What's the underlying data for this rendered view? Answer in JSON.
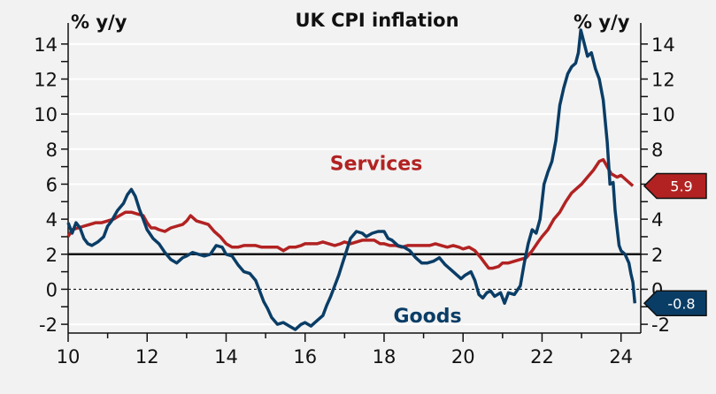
{
  "chart_data": {
    "type": "line",
    "title": "UK CPI inflation",
    "ylabel_left": "% y/y",
    "ylabel_right": "% y/y",
    "ylim": [
      -2.5,
      15
    ],
    "xlim": [
      10,
      24.5
    ],
    "y_ticks": [
      "-2",
      "0",
      "2",
      "4",
      "6",
      "8",
      "10",
      "12",
      "14"
    ],
    "x_ticks": [
      "10",
      "12",
      "14",
      "16",
      "18",
      "20",
      "22",
      "24"
    ],
    "grid": true,
    "reference_lines": [
      {
        "y": 2,
        "style": "solid"
      },
      {
        "y": 0,
        "style": "dotted"
      }
    ],
    "series": [
      {
        "name": "Services",
        "color": "#b22222",
        "end_value": "5.9",
        "points": [
          [
            10.0,
            3.0
          ],
          [
            10.1,
            3.4
          ],
          [
            10.25,
            3.5
          ],
          [
            10.4,
            3.6
          ],
          [
            10.55,
            3.7
          ],
          [
            10.7,
            3.8
          ],
          [
            10.85,
            3.8
          ],
          [
            11.0,
            3.9
          ],
          [
            11.15,
            4.0
          ],
          [
            11.3,
            4.2
          ],
          [
            11.45,
            4.4
          ],
          [
            11.6,
            4.4
          ],
          [
            11.75,
            4.3
          ],
          [
            11.9,
            4.2
          ],
          [
            12.0,
            3.8
          ],
          [
            12.1,
            3.5
          ],
          [
            12.2,
            3.5
          ],
          [
            12.3,
            3.4
          ],
          [
            12.45,
            3.3
          ],
          [
            12.6,
            3.5
          ],
          [
            12.75,
            3.6
          ],
          [
            12.9,
            3.7
          ],
          [
            13.0,
            3.9
          ],
          [
            13.1,
            4.2
          ],
          [
            13.25,
            3.9
          ],
          [
            13.4,
            3.8
          ],
          [
            13.55,
            3.7
          ],
          [
            13.7,
            3.3
          ],
          [
            13.85,
            3.0
          ],
          [
            14.0,
            2.6
          ],
          [
            14.15,
            2.4
          ],
          [
            14.3,
            2.4
          ],
          [
            14.45,
            2.5
          ],
          [
            14.6,
            2.5
          ],
          [
            14.75,
            2.5
          ],
          [
            14.9,
            2.4
          ],
          [
            15.0,
            2.4
          ],
          [
            15.15,
            2.4
          ],
          [
            15.3,
            2.4
          ],
          [
            15.45,
            2.2
          ],
          [
            15.6,
            2.4
          ],
          [
            15.75,
            2.4
          ],
          [
            15.9,
            2.5
          ],
          [
            16.0,
            2.6
          ],
          [
            16.15,
            2.6
          ],
          [
            16.3,
            2.6
          ],
          [
            16.45,
            2.7
          ],
          [
            16.6,
            2.6
          ],
          [
            16.75,
            2.5
          ],
          [
            16.9,
            2.6
          ],
          [
            17.0,
            2.7
          ],
          [
            17.15,
            2.6
          ],
          [
            17.3,
            2.7
          ],
          [
            17.45,
            2.8
          ],
          [
            17.6,
            2.8
          ],
          [
            17.75,
            2.8
          ],
          [
            17.9,
            2.6
          ],
          [
            18.0,
            2.6
          ],
          [
            18.15,
            2.5
          ],
          [
            18.3,
            2.5
          ],
          [
            18.45,
            2.4
          ],
          [
            18.6,
            2.5
          ],
          [
            18.75,
            2.5
          ],
          [
            18.9,
            2.5
          ],
          [
            19.0,
            2.5
          ],
          [
            19.15,
            2.5
          ],
          [
            19.3,
            2.6
          ],
          [
            19.45,
            2.5
          ],
          [
            19.6,
            2.4
          ],
          [
            19.75,
            2.5
          ],
          [
            19.9,
            2.4
          ],
          [
            20.0,
            2.3
          ],
          [
            20.15,
            2.4
          ],
          [
            20.3,
            2.2
          ],
          [
            20.45,
            1.8
          ],
          [
            20.55,
            1.5
          ],
          [
            20.65,
            1.2
          ],
          [
            20.75,
            1.2
          ],
          [
            20.9,
            1.3
          ],
          [
            21.0,
            1.5
          ],
          [
            21.15,
            1.5
          ],
          [
            21.3,
            1.6
          ],
          [
            21.45,
            1.7
          ],
          [
            21.6,
            1.8
          ],
          [
            21.75,
            2.2
          ],
          [
            21.9,
            2.7
          ],
          [
            22.0,
            3.0
          ],
          [
            22.15,
            3.4
          ],
          [
            22.3,
            4.0
          ],
          [
            22.45,
            4.4
          ],
          [
            22.6,
            5.0
          ],
          [
            22.75,
            5.5
          ],
          [
            22.9,
            5.8
          ],
          [
            23.0,
            6.0
          ],
          [
            23.15,
            6.4
          ],
          [
            23.3,
            6.8
          ],
          [
            23.45,
            7.3
          ],
          [
            23.55,
            7.4
          ],
          [
            23.65,
            7.0
          ],
          [
            23.75,
            6.6
          ],
          [
            23.9,
            6.4
          ],
          [
            24.0,
            6.5
          ],
          [
            24.15,
            6.2
          ],
          [
            24.3,
            5.9
          ]
        ]
      },
      {
        "name": "Goods",
        "color": "#0a3d66",
        "end_value": "-0.8",
        "points": [
          [
            10.0,
            3.8
          ],
          [
            10.1,
            3.2
          ],
          [
            10.2,
            3.8
          ],
          [
            10.3,
            3.5
          ],
          [
            10.4,
            2.9
          ],
          [
            10.5,
            2.6
          ],
          [
            10.6,
            2.5
          ],
          [
            10.75,
            2.7
          ],
          [
            10.9,
            3.0
          ],
          [
            11.0,
            3.6
          ],
          [
            11.1,
            3.9
          ],
          [
            11.25,
            4.5
          ],
          [
            11.4,
            4.9
          ],
          [
            11.5,
            5.4
          ],
          [
            11.6,
            5.7
          ],
          [
            11.7,
            5.3
          ],
          [
            11.8,
            4.6
          ],
          [
            11.9,
            4.0
          ],
          [
            12.0,
            3.4
          ],
          [
            12.15,
            2.9
          ],
          [
            12.3,
            2.6
          ],
          [
            12.45,
            2.1
          ],
          [
            12.6,
            1.7
          ],
          [
            12.75,
            1.5
          ],
          [
            12.9,
            1.8
          ],
          [
            13.0,
            1.9
          ],
          [
            13.15,
            2.1
          ],
          [
            13.3,
            2.0
          ],
          [
            13.45,
            1.9
          ],
          [
            13.6,
            2.0
          ],
          [
            13.75,
            2.5
          ],
          [
            13.9,
            2.4
          ],
          [
            14.0,
            2.0
          ],
          [
            14.15,
            1.9
          ],
          [
            14.3,
            1.4
          ],
          [
            14.45,
            1.0
          ],
          [
            14.6,
            0.9
          ],
          [
            14.75,
            0.5
          ],
          [
            14.85,
            -0.1
          ],
          [
            14.95,
            -0.7
          ],
          [
            15.05,
            -1.1
          ],
          [
            15.15,
            -1.6
          ],
          [
            15.3,
            -2.0
          ],
          [
            15.45,
            -1.9
          ],
          [
            15.6,
            -2.1
          ],
          [
            15.75,
            -2.3
          ],
          [
            15.9,
            -2.0
          ],
          [
            16.0,
            -1.9
          ],
          [
            16.15,
            -2.1
          ],
          [
            16.3,
            -1.8
          ],
          [
            16.45,
            -1.5
          ],
          [
            16.55,
            -0.9
          ],
          [
            16.65,
            -0.4
          ],
          [
            16.75,
            0.2
          ],
          [
            16.85,
            0.8
          ],
          [
            16.95,
            1.5
          ],
          [
            17.05,
            2.2
          ],
          [
            17.15,
            2.9
          ],
          [
            17.3,
            3.3
          ],
          [
            17.45,
            3.2
          ],
          [
            17.55,
            3.0
          ],
          [
            17.7,
            3.2
          ],
          [
            17.85,
            3.3
          ],
          [
            18.0,
            3.3
          ],
          [
            18.1,
            2.9
          ],
          [
            18.2,
            2.8
          ],
          [
            18.35,
            2.5
          ],
          [
            18.5,
            2.4
          ],
          [
            18.65,
            2.2
          ],
          [
            18.8,
            1.8
          ],
          [
            18.95,
            1.5
          ],
          [
            19.1,
            1.5
          ],
          [
            19.25,
            1.6
          ],
          [
            19.4,
            1.8
          ],
          [
            19.55,
            1.4
          ],
          [
            19.7,
            1.1
          ],
          [
            19.85,
            0.8
          ],
          [
            19.95,
            0.6
          ],
          [
            20.05,
            0.8
          ],
          [
            20.2,
            1.0
          ],
          [
            20.3,
            0.5
          ],
          [
            20.4,
            -0.3
          ],
          [
            20.5,
            -0.5
          ],
          [
            20.6,
            -0.2
          ],
          [
            20.7,
            -0.1
          ],
          [
            20.8,
            -0.4
          ],
          [
            20.95,
            -0.2
          ],
          [
            21.05,
            -0.8
          ],
          [
            21.15,
            -0.2
          ],
          [
            21.3,
            -0.3
          ],
          [
            21.45,
            0.2
          ],
          [
            21.55,
            1.5
          ],
          [
            21.65,
            2.6
          ],
          [
            21.75,
            3.4
          ],
          [
            21.85,
            3.2
          ],
          [
            21.95,
            4.0
          ],
          [
            22.05,
            6.0
          ],
          [
            22.15,
            6.7
          ],
          [
            22.25,
            7.3
          ],
          [
            22.35,
            8.5
          ],
          [
            22.45,
            10.5
          ],
          [
            22.55,
            11.5
          ],
          [
            22.65,
            12.3
          ],
          [
            22.75,
            12.7
          ],
          [
            22.85,
            12.9
          ],
          [
            22.92,
            13.5
          ],
          [
            22.98,
            14.8
          ],
          [
            23.05,
            14.2
          ],
          [
            23.15,
            13.3
          ],
          [
            23.25,
            13.5
          ],
          [
            23.35,
            12.6
          ],
          [
            23.45,
            12.0
          ],
          [
            23.55,
            10.8
          ],
          [
            23.65,
            8.4
          ],
          [
            23.72,
            6.0
          ],
          [
            23.8,
            6.1
          ],
          [
            23.85,
            4.5
          ],
          [
            23.9,
            3.5
          ],
          [
            23.95,
            2.5
          ],
          [
            24.0,
            2.2
          ],
          [
            24.1,
            2.0
          ],
          [
            24.2,
            1.5
          ],
          [
            24.25,
            0.9
          ],
          [
            24.3,
            0.4
          ],
          [
            24.35,
            -0.8
          ]
        ]
      }
    ],
    "series_labels": [
      {
        "name": "Services",
        "at": [
          17.8,
          6.8
        ]
      },
      {
        "name": "Goods",
        "at": [
          19.1,
          -1.9
        ]
      }
    ]
  }
}
